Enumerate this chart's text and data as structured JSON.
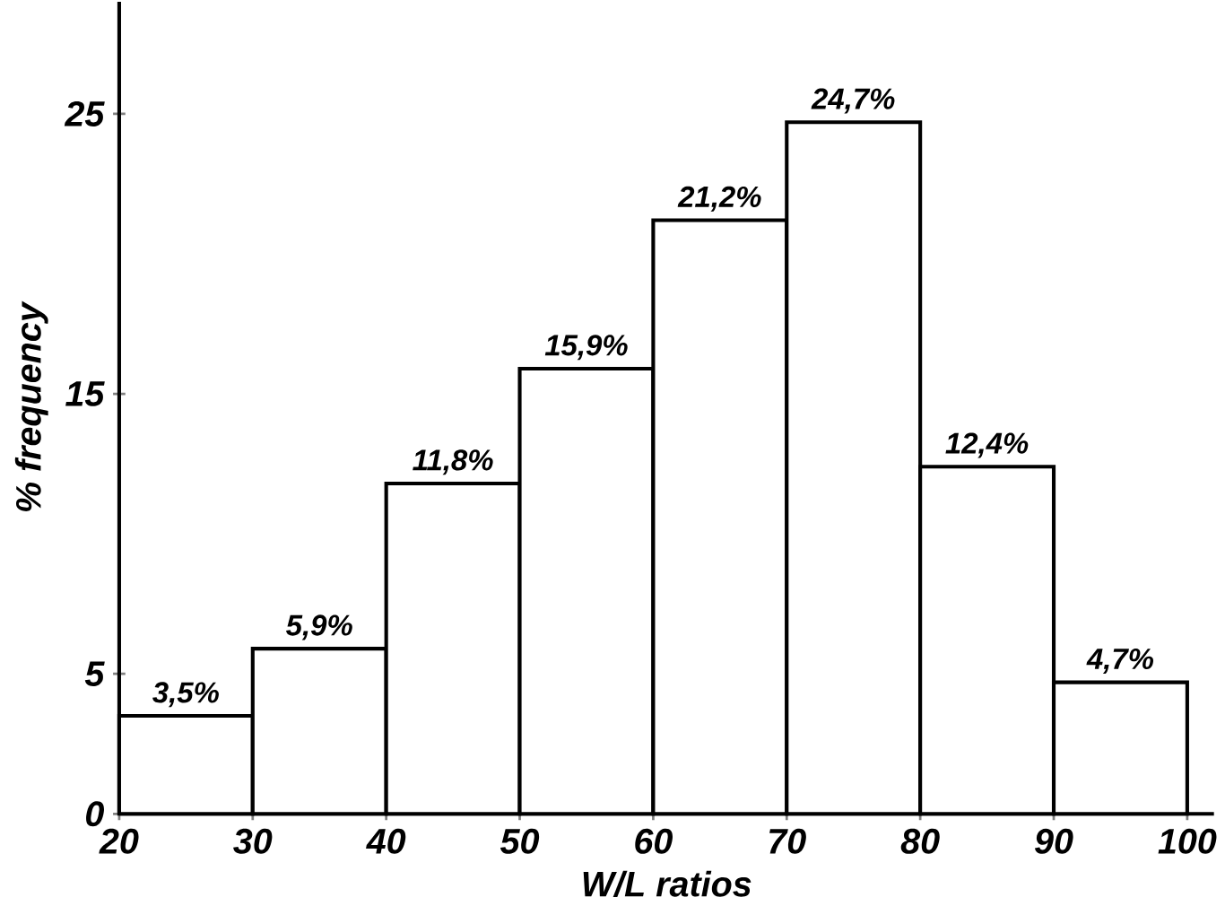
{
  "chart_data": {
    "type": "histogram",
    "xlabel": "W/L ratios",
    "ylabel": "% frequency",
    "bins": [
      20,
      30,
      40,
      50,
      60,
      70,
      80,
      90,
      100
    ],
    "values": [
      3.5,
      5.9,
      11.8,
      15.9,
      21.2,
      24.7,
      12.4,
      4.7
    ],
    "value_labels": [
      "3,5%",
      "5,9%",
      "11,8%",
      "15,9%",
      "21,2%",
      "24,7%",
      "12,4%",
      "4,7%"
    ],
    "color": "#000000",
    "xlim": [
      20,
      102
    ],
    "ylim": [
      0,
      29
    ],
    "xticks": [
      20,
      30,
      40,
      50,
      60,
      70,
      80,
      90,
      100
    ],
    "yticks": [
      0,
      5,
      15,
      25
    ],
    "grid": false
  }
}
